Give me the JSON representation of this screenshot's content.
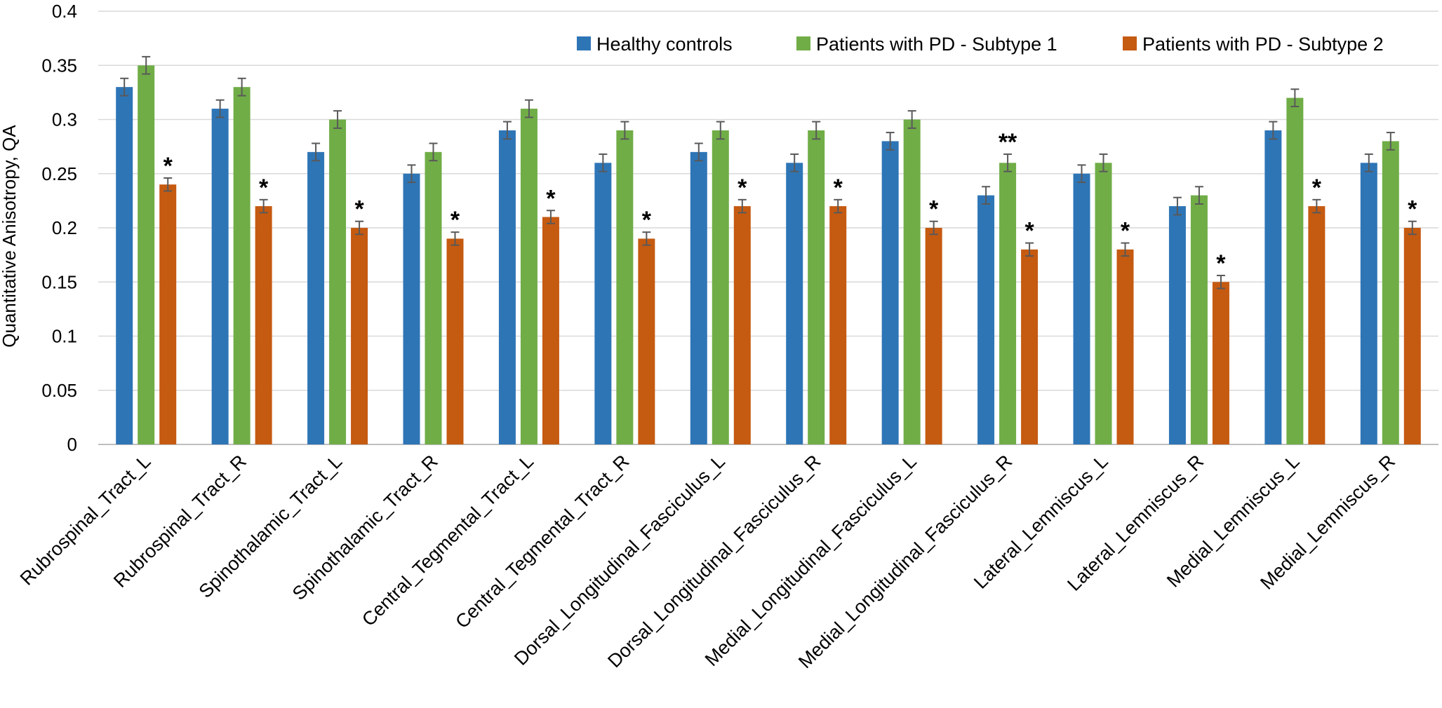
{
  "chart_data": {
    "type": "bar",
    "title": "",
    "xlabel": "",
    "ylabel": "Quantitative Anisotropy, QA",
    "ylim": [
      0,
      0.4
    ],
    "yticks": [
      "0",
      "0.05",
      "0.1",
      "0.15",
      "0.2",
      "0.25",
      "0.3",
      "0.35",
      "0.4"
    ],
    "ytick_values": [
      0,
      0.05,
      0.1,
      0.15,
      0.2,
      0.25,
      0.3,
      0.35,
      0.4
    ],
    "grid": true,
    "legend_position": "top-right",
    "categories": [
      "Rubrospinal_Tract_L",
      "Rubrospinal_Tract_R",
      "Spinothalamic_Tract_L",
      "Spinothalamic_Tract_R",
      "Central_Tegmental_Tract_L",
      "Central_Tegmental_Tract_R",
      "Dorsal_Longitudinal_Fasciculus_L",
      "Dorsal_Longitudinal_Fasciculus_R",
      "Medial_Longitudinal_Fasciculus_L",
      "Medial_Longitudinal_Fasciculus_R",
      "Lateral_Lemniscus_L",
      "Lateral_Lemniscus_R",
      "Medial_Lemniscus_L",
      "Medial_Lemniscus_R"
    ],
    "series": [
      {
        "name": "Healthy controls",
        "color": "#2e75b6",
        "values": [
          0.33,
          0.31,
          0.27,
          0.25,
          0.29,
          0.26,
          0.27,
          0.26,
          0.28,
          0.23,
          0.25,
          0.22,
          0.29,
          0.26
        ],
        "error": [
          0.008,
          0.008,
          0.008,
          0.008,
          0.008,
          0.008,
          0.008,
          0.008,
          0.008,
          0.008,
          0.008,
          0.008,
          0.008,
          0.008
        ],
        "annotations": [
          "",
          "",
          "",
          "",
          "",
          "",
          "",
          "",
          "",
          "",
          "",
          "",
          "",
          ""
        ]
      },
      {
        "name": "Patients with PD - Subtype 1",
        "color": "#70ad47",
        "values": [
          0.35,
          0.33,
          0.3,
          0.27,
          0.31,
          0.29,
          0.29,
          0.29,
          0.3,
          0.26,
          0.26,
          0.23,
          0.32,
          0.28
        ],
        "error": [
          0.008,
          0.008,
          0.008,
          0.008,
          0.008,
          0.008,
          0.008,
          0.008,
          0.008,
          0.008,
          0.008,
          0.008,
          0.008,
          0.008
        ],
        "annotations": [
          "",
          "",
          "",
          "",
          "",
          "",
          "",
          "",
          "",
          "**",
          "",
          "",
          "",
          ""
        ]
      },
      {
        "name": "Patients with PD - Subtype 2",
        "color": "#c55a11",
        "values": [
          0.24,
          0.22,
          0.2,
          0.19,
          0.21,
          0.19,
          0.22,
          0.22,
          0.2,
          0.18,
          0.18,
          0.15,
          0.22,
          0.2
        ],
        "error": [
          0.006,
          0.006,
          0.006,
          0.006,
          0.006,
          0.006,
          0.006,
          0.006,
          0.006,
          0.006,
          0.006,
          0.006,
          0.006,
          0.006
        ],
        "annotations": [
          "*",
          "*",
          "*",
          "*",
          "*",
          "*",
          "*",
          "*",
          "*",
          "*",
          "*",
          "*",
          "*",
          "*"
        ]
      }
    ]
  }
}
